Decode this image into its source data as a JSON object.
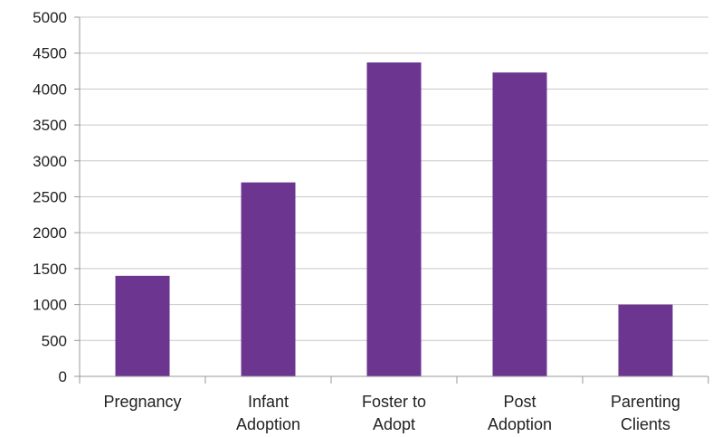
{
  "chart_data": {
    "type": "bar",
    "categories": [
      [
        "Pregnancy"
      ],
      [
        "Infant",
        "Adoption"
      ],
      [
        "Foster to",
        "Adopt"
      ],
      [
        "Post",
        "Adoption"
      ],
      [
        "Parenting",
        "Clients"
      ]
    ],
    "values": [
      1400,
      2700,
      4370,
      4230,
      1000
    ],
    "ylim": [
      0,
      5000
    ],
    "yticks": [
      0,
      500,
      1000,
      1500,
      2000,
      2500,
      3000,
      3500,
      4000,
      4500,
      5000
    ],
    "grid": true,
    "legend": "none",
    "bar_color": "#6b3590",
    "grid_color": "#c8c8c8",
    "axis_color": "#9a9a9a"
  }
}
